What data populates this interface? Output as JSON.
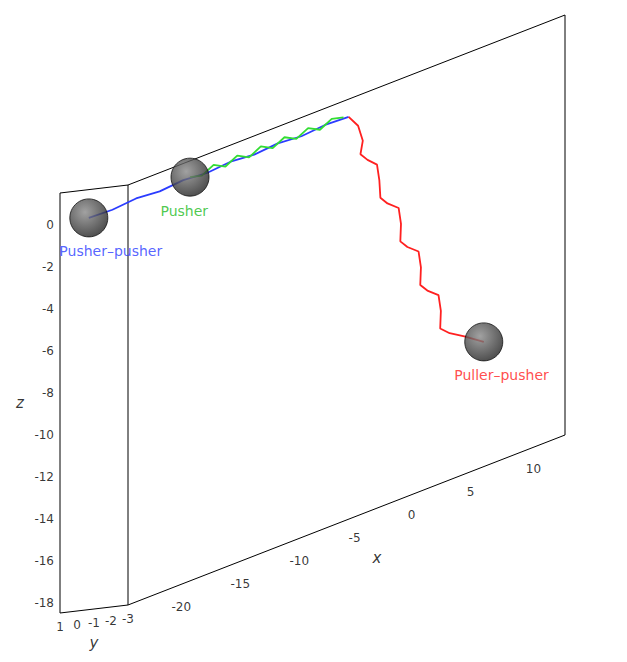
{
  "chart_data": {
    "type": "line3d",
    "xlabel": "x",
    "ylabel": "y",
    "zlabel": "z",
    "xlim": [
      -23,
      14
    ],
    "ylim": [
      -3,
      1
    ],
    "zlim": [
      -18.5,
      1.5
    ],
    "xticks": [
      -20,
      -15,
      -10,
      -5,
      0,
      5,
      10
    ],
    "yticks": [
      -3,
      -2,
      -1,
      0,
      1
    ],
    "zticks": [
      -18,
      -16,
      -14,
      -12,
      -10,
      -8,
      -6,
      -4,
      -2,
      0
    ],
    "series": [
      {
        "name": "Pusher–pusher",
        "color": "#2b3cff",
        "marker": "sphere",
        "x": [
          0,
          -2,
          -4,
          -6,
          -8,
          -10,
          -12,
          -14,
          -16,
          -18,
          -20,
          -22
        ],
        "y": [
          0,
          0,
          0,
          0,
          0,
          0,
          0,
          0,
          0,
          0,
          0,
          0
        ],
        "z": [
          0,
          0.05,
          -0.05,
          0.05,
          -0.05,
          0.05,
          -0.05,
          0.05,
          -0.05,
          0.05,
          -0.05,
          0
        ]
      },
      {
        "name": "Pusher",
        "color": "#33dd33",
        "marker": "sphere",
        "x": [
          0,
          -1,
          -2,
          -3,
          -4,
          -5,
          -6,
          -7,
          -8,
          -9,
          -10,
          -11,
          -12,
          -13
        ],
        "y": [
          0.3,
          0.3,
          0.3,
          0.3,
          0.3,
          0.3,
          0.3,
          0.3,
          0.3,
          0.3,
          0.3,
          0.3,
          0.3,
          0.3
        ],
        "z": [
          0,
          0.15,
          -0.15,
          0.15,
          -0.15,
          0.15,
          -0.15,
          0.15,
          -0.15,
          0.15,
          -0.15,
          0.15,
          -0.15,
          0
        ]
      },
      {
        "name": "Puller–pusher",
        "color": "#ff2020",
        "marker": "sphere",
        "x": [
          0,
          0.8,
          1.2,
          1.0,
          1.6,
          2.4,
          2.6,
          2.4,
          3.0,
          3.8,
          4.0,
          3.8,
          4.4,
          5.2,
          5.4,
          5.2,
          5.8,
          6.6,
          6.8,
          6.6,
          7.4,
          8.5,
          10
        ],
        "y": [
          0,
          0,
          0,
          0,
          0,
          0,
          0,
          -0.2,
          -0.2,
          -0.3,
          -0.3,
          -0.4,
          -0.4,
          -0.5,
          -0.5,
          -0.6,
          -0.6,
          -0.7,
          -0.7,
          -0.8,
          -0.8,
          -0.9,
          -1
        ],
        "z": [
          0,
          -0.6,
          -1.4,
          -2,
          -2.4,
          -2.8,
          -3.6,
          -4.4,
          -4.8,
          -5.2,
          -6.0,
          -6.8,
          -7.2,
          -7.6,
          -8.4,
          -9.2,
          -9.6,
          -10,
          -10.8,
          -11.6,
          -12,
          -12.4,
          -13
        ]
      }
    ]
  }
}
